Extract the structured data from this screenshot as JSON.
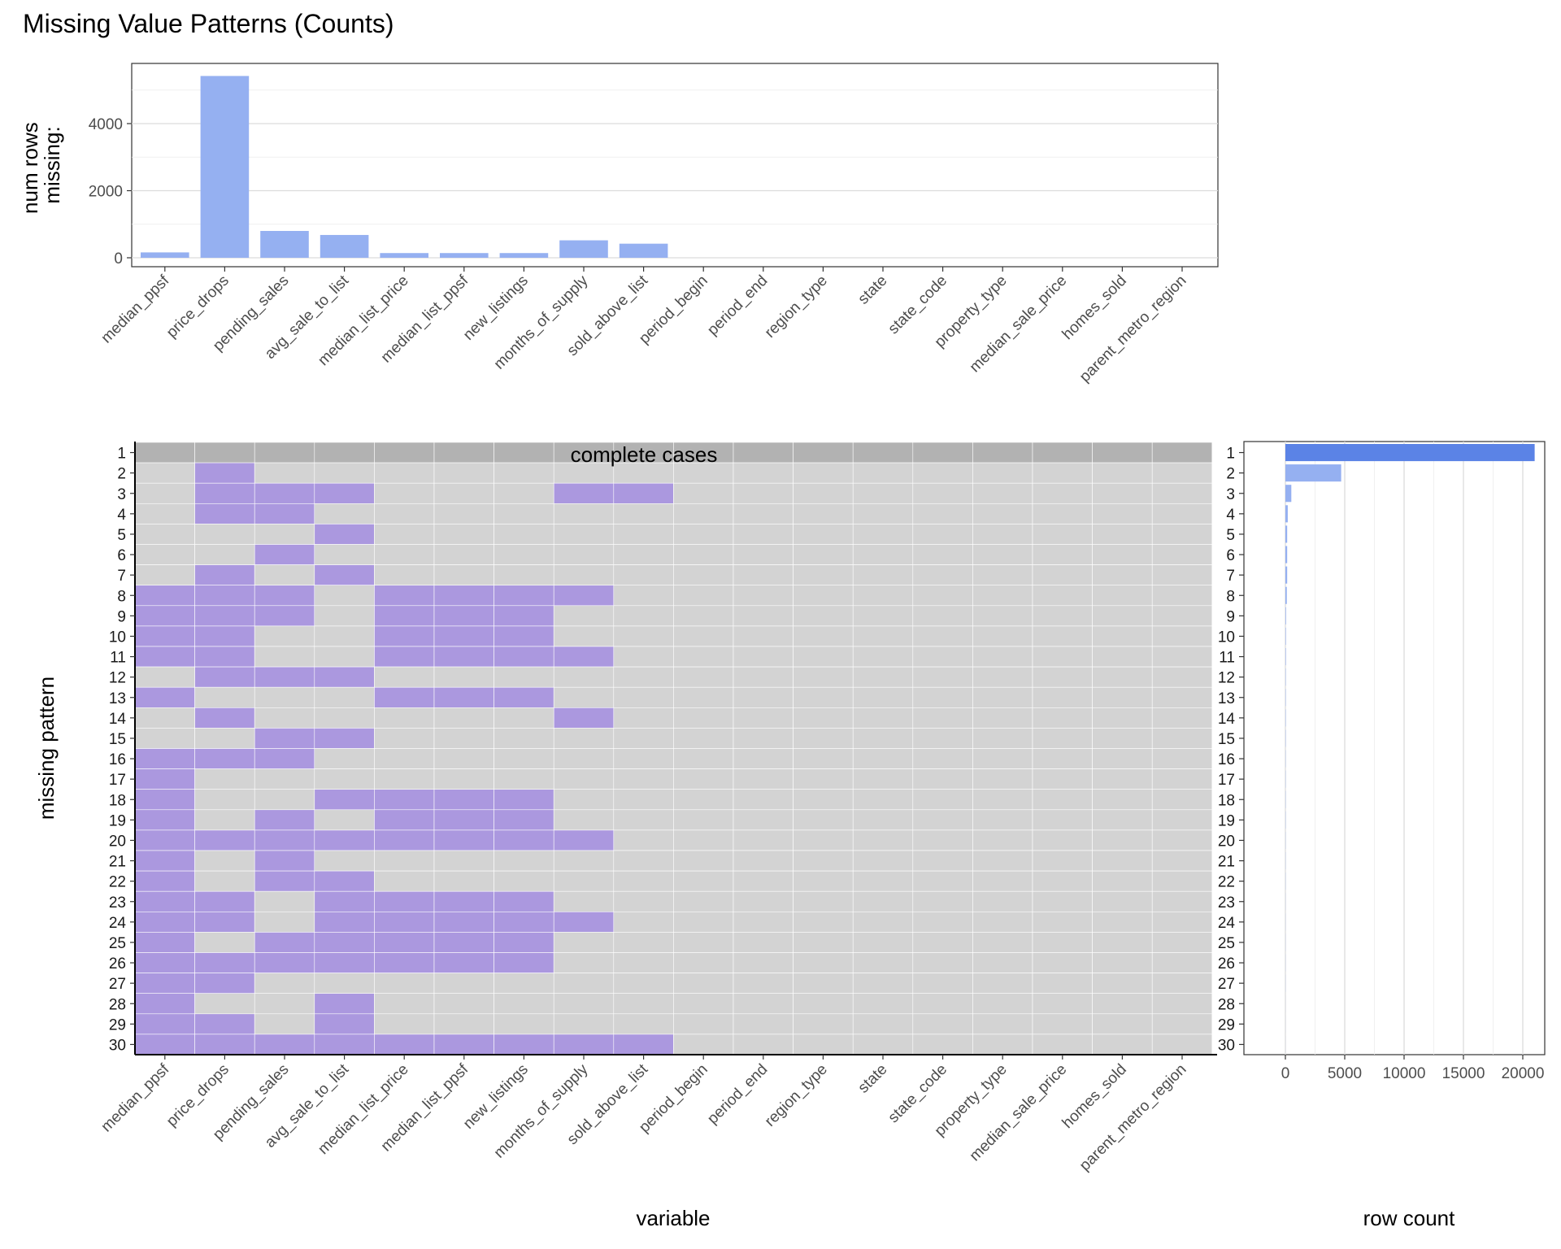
{
  "title": "Missing Value Patterns (Counts)",
  "colors": {
    "missing_bar": "#95b0f1",
    "missing_cell": "#ab98df",
    "present_cell": "#d3d3d3",
    "complete_row": "#b2b2b2",
    "row_count_highlight": "#5b83e6",
    "row_count_bar": "#95b0f1"
  },
  "chart_data": [
    {
      "type": "bar",
      "panel": "top",
      "categories": [
        "median_ppsf",
        "price_drops",
        "pending_sales",
        "avg_sale_to_list",
        "median_list_price",
        "median_list_ppsf",
        "new_listings",
        "months_of_supply",
        "sold_above_list",
        "period_begin",
        "period_end",
        "region_type",
        "state",
        "state_code",
        "property_type",
        "median_sale_price",
        "homes_sold",
        "parent_metro_region"
      ],
      "values": [
        160,
        5420,
        800,
        680,
        140,
        140,
        140,
        520,
        420,
        0,
        0,
        0,
        0,
        0,
        0,
        0,
        0,
        0
      ],
      "ylabel": "num rows\nmissing:",
      "ylim": [
        0,
        5600
      ],
      "yticks": [
        0,
        2000,
        4000
      ],
      "grid": true
    },
    {
      "type": "heatmap",
      "panel": "main",
      "xlabel": "variable",
      "ylabel": "missing pattern",
      "columns": [
        "median_ppsf",
        "price_drops",
        "pending_sales",
        "avg_sale_to_list",
        "median_list_price",
        "median_list_ppsf",
        "new_listings",
        "months_of_supply",
        "sold_above_list",
        "period_begin",
        "period_end",
        "region_type",
        "state",
        "state_code",
        "property_type",
        "median_sale_price",
        "homes_sold",
        "parent_metro_region"
      ],
      "row_labels": [
        "1",
        "2",
        "3",
        "4",
        "5",
        "6",
        "7",
        "8",
        "9",
        "10",
        "11",
        "12",
        "13",
        "14",
        "15",
        "16",
        "17",
        "18",
        "19",
        "20",
        "21",
        "22",
        "23",
        "24",
        "25",
        "26",
        "27",
        "28",
        "29",
        "30"
      ],
      "complete_label": "complete cases",
      "complete_row": 1,
      "patterns": [
        [
          0,
          0,
          0,
          0,
          0,
          0,
          0,
          0,
          0,
          0,
          0,
          0,
          0,
          0,
          0,
          0,
          0,
          0
        ],
        [
          0,
          1,
          0,
          0,
          0,
          0,
          0,
          0,
          0,
          0,
          0,
          0,
          0,
          0,
          0,
          0,
          0,
          0
        ],
        [
          0,
          1,
          1,
          1,
          0,
          0,
          0,
          1,
          1,
          0,
          0,
          0,
          0,
          0,
          0,
          0,
          0,
          0
        ],
        [
          0,
          1,
          1,
          0,
          0,
          0,
          0,
          0,
          0,
          0,
          0,
          0,
          0,
          0,
          0,
          0,
          0,
          0
        ],
        [
          0,
          0,
          0,
          1,
          0,
          0,
          0,
          0,
          0,
          0,
          0,
          0,
          0,
          0,
          0,
          0,
          0,
          0
        ],
        [
          0,
          0,
          1,
          0,
          0,
          0,
          0,
          0,
          0,
          0,
          0,
          0,
          0,
          0,
          0,
          0,
          0,
          0
        ],
        [
          0,
          1,
          0,
          1,
          0,
          0,
          0,
          0,
          0,
          0,
          0,
          0,
          0,
          0,
          0,
          0,
          0,
          0
        ],
        [
          1,
          1,
          1,
          0,
          1,
          1,
          1,
          1,
          0,
          0,
          0,
          0,
          0,
          0,
          0,
          0,
          0,
          0
        ],
        [
          1,
          1,
          1,
          0,
          1,
          1,
          1,
          0,
          0,
          0,
          0,
          0,
          0,
          0,
          0,
          0,
          0,
          0
        ],
        [
          1,
          1,
          0,
          0,
          1,
          1,
          1,
          0,
          0,
          0,
          0,
          0,
          0,
          0,
          0,
          0,
          0,
          0
        ],
        [
          1,
          1,
          0,
          0,
          1,
          1,
          1,
          1,
          0,
          0,
          0,
          0,
          0,
          0,
          0,
          0,
          0,
          0
        ],
        [
          0,
          1,
          1,
          1,
          0,
          0,
          0,
          0,
          0,
          0,
          0,
          0,
          0,
          0,
          0,
          0,
          0,
          0
        ],
        [
          1,
          0,
          0,
          0,
          1,
          1,
          1,
          0,
          0,
          0,
          0,
          0,
          0,
          0,
          0,
          0,
          0,
          0
        ],
        [
          0,
          1,
          0,
          0,
          0,
          0,
          0,
          1,
          0,
          0,
          0,
          0,
          0,
          0,
          0,
          0,
          0,
          0
        ],
        [
          0,
          0,
          1,
          1,
          0,
          0,
          0,
          0,
          0,
          0,
          0,
          0,
          0,
          0,
          0,
          0,
          0,
          0
        ],
        [
          1,
          1,
          1,
          0,
          0,
          0,
          0,
          0,
          0,
          0,
          0,
          0,
          0,
          0,
          0,
          0,
          0,
          0
        ],
        [
          1,
          0,
          0,
          0,
          0,
          0,
          0,
          0,
          0,
          0,
          0,
          0,
          0,
          0,
          0,
          0,
          0,
          0
        ],
        [
          1,
          0,
          0,
          1,
          1,
          1,
          1,
          0,
          0,
          0,
          0,
          0,
          0,
          0,
          0,
          0,
          0,
          0
        ],
        [
          1,
          0,
          1,
          0,
          1,
          1,
          1,
          0,
          0,
          0,
          0,
          0,
          0,
          0,
          0,
          0,
          0,
          0
        ],
        [
          1,
          1,
          1,
          1,
          1,
          1,
          1,
          1,
          0,
          0,
          0,
          0,
          0,
          0,
          0,
          0,
          0,
          0
        ],
        [
          1,
          0,
          1,
          0,
          0,
          0,
          0,
          0,
          0,
          0,
          0,
          0,
          0,
          0,
          0,
          0,
          0,
          0
        ],
        [
          1,
          0,
          1,
          1,
          0,
          0,
          0,
          0,
          0,
          0,
          0,
          0,
          0,
          0,
          0,
          0,
          0,
          0
        ],
        [
          1,
          1,
          0,
          1,
          1,
          1,
          1,
          0,
          0,
          0,
          0,
          0,
          0,
          0,
          0,
          0,
          0,
          0
        ],
        [
          1,
          1,
          0,
          1,
          1,
          1,
          1,
          1,
          0,
          0,
          0,
          0,
          0,
          0,
          0,
          0,
          0,
          0
        ],
        [
          1,
          0,
          1,
          1,
          1,
          1,
          1,
          0,
          0,
          0,
          0,
          0,
          0,
          0,
          0,
          0,
          0,
          0
        ],
        [
          1,
          1,
          1,
          1,
          1,
          1,
          1,
          0,
          0,
          0,
          0,
          0,
          0,
          0,
          0,
          0,
          0,
          0
        ],
        [
          1,
          1,
          0,
          0,
          0,
          0,
          0,
          0,
          0,
          0,
          0,
          0,
          0,
          0,
          0,
          0,
          0,
          0
        ],
        [
          1,
          0,
          0,
          1,
          0,
          0,
          0,
          0,
          0,
          0,
          0,
          0,
          0,
          0,
          0,
          0,
          0,
          0
        ],
        [
          1,
          1,
          0,
          1,
          0,
          0,
          0,
          0,
          0,
          0,
          0,
          0,
          0,
          0,
          0,
          0,
          0,
          0
        ],
        [
          1,
          1,
          1,
          1,
          1,
          1,
          1,
          1,
          1,
          0,
          0,
          0,
          0,
          0,
          0,
          0,
          0,
          0
        ]
      ]
    },
    {
      "type": "bar",
      "panel": "right",
      "orientation": "horizontal",
      "xlabel": "row count",
      "categories": [
        "1",
        "2",
        "3",
        "4",
        "5",
        "6",
        "7",
        "8",
        "9",
        "10",
        "11",
        "12",
        "13",
        "14",
        "15",
        "16",
        "17",
        "18",
        "19",
        "20",
        "21",
        "22",
        "23",
        "24",
        "25",
        "26",
        "27",
        "28",
        "29",
        "30"
      ],
      "values": [
        21000,
        4700,
        500,
        200,
        150,
        150,
        150,
        120,
        50,
        40,
        40,
        30,
        30,
        30,
        25,
        20,
        20,
        20,
        20,
        15,
        15,
        15,
        10,
        10,
        10,
        10,
        10,
        5,
        5,
        5
      ],
      "xlim": [
        0,
        22000
      ],
      "xticks": [
        0,
        5000,
        10000,
        15000,
        20000
      ],
      "grid": true
    }
  ]
}
